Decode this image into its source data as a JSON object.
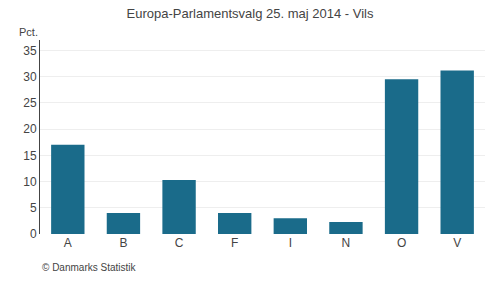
{
  "chart_data": {
    "type": "bar",
    "title": "Europa-Parlamentsvalg 25. maj 2014 - Vils",
    "ylabel": "Pct.",
    "annotations": [
      "© Danmarks Statistik"
    ],
    "categories": [
      "A",
      "B",
      "C",
      "F",
      "I",
      "N",
      "O",
      "V"
    ],
    "values": [
      17.0,
      4.0,
      10.3,
      4.0,
      3.0,
      2.3,
      29.5,
      31.2
    ],
    "color": "#1a6b8a",
    "ylim": [
      0,
      37
    ],
    "yticks": [
      0,
      5,
      10,
      15,
      20,
      25,
      30,
      35
    ],
    "grid": true
  }
}
